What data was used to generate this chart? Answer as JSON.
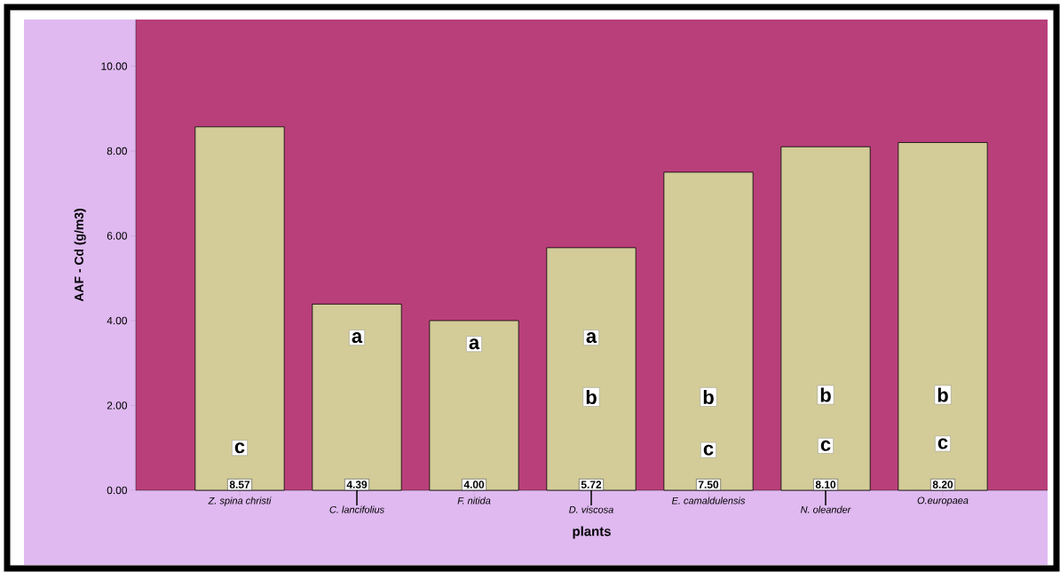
{
  "chart_data": {
    "type": "bar",
    "xlabel": "plants",
    "ylabel": "AAF - Cd (g/m3)",
    "categories": [
      "Z. spina christi",
      "C. lancifolius",
      "F. nitida",
      "D. viscosa",
      "E. camaldulensis",
      "N. oleander",
      "O.europaea"
    ],
    "values": [
      8.57,
      4.39,
      4.0,
      5.72,
      7.5,
      8.1,
      8.2
    ],
    "value_labels": [
      "8.57",
      "4.39",
      "4.00",
      "5.72",
      "7.50",
      "8.10",
      "8.20"
    ],
    "color": "#d3cc98",
    "ylim": [
      0,
      11.1
    ],
    "yticks": [
      {
        "value": 0,
        "label": "0.00"
      },
      {
        "value": 2,
        "label": "2.00"
      },
      {
        "value": 4,
        "label": "4.00"
      },
      {
        "value": 6,
        "label": "6.00"
      },
      {
        "value": 8,
        "label": "8.00"
      },
      {
        "value": 10,
        "label": "10.00"
      }
    ],
    "annotations": [
      {
        "text": "c",
        "x": "Z. spina christi",
        "y": 1.0
      },
      {
        "text": "a",
        "x": "C. lancifolius",
        "y": 3.6
      },
      {
        "text": "a",
        "x": "F. nitida",
        "y": 3.45
      },
      {
        "text": "a",
        "x": "D. viscosa",
        "y": 3.6
      },
      {
        "text": "b",
        "x": "D. viscosa",
        "y": 2.2
      },
      {
        "text": "b",
        "x": "E. camaldulensis",
        "y": 2.2
      },
      {
        "text": "c",
        "x": "E. camaldulensis",
        "y": 0.95
      },
      {
        "text": "b",
        "x": "N. oleander",
        "y": 2.25
      },
      {
        "text": "c",
        "x": "N. oleander",
        "y": 1.05
      },
      {
        "text": "b",
        "x": "O.europaea",
        "y": 2.25
      },
      {
        "text": "c",
        "x": "O.europaea",
        "y": 1.1
      }
    ]
  }
}
